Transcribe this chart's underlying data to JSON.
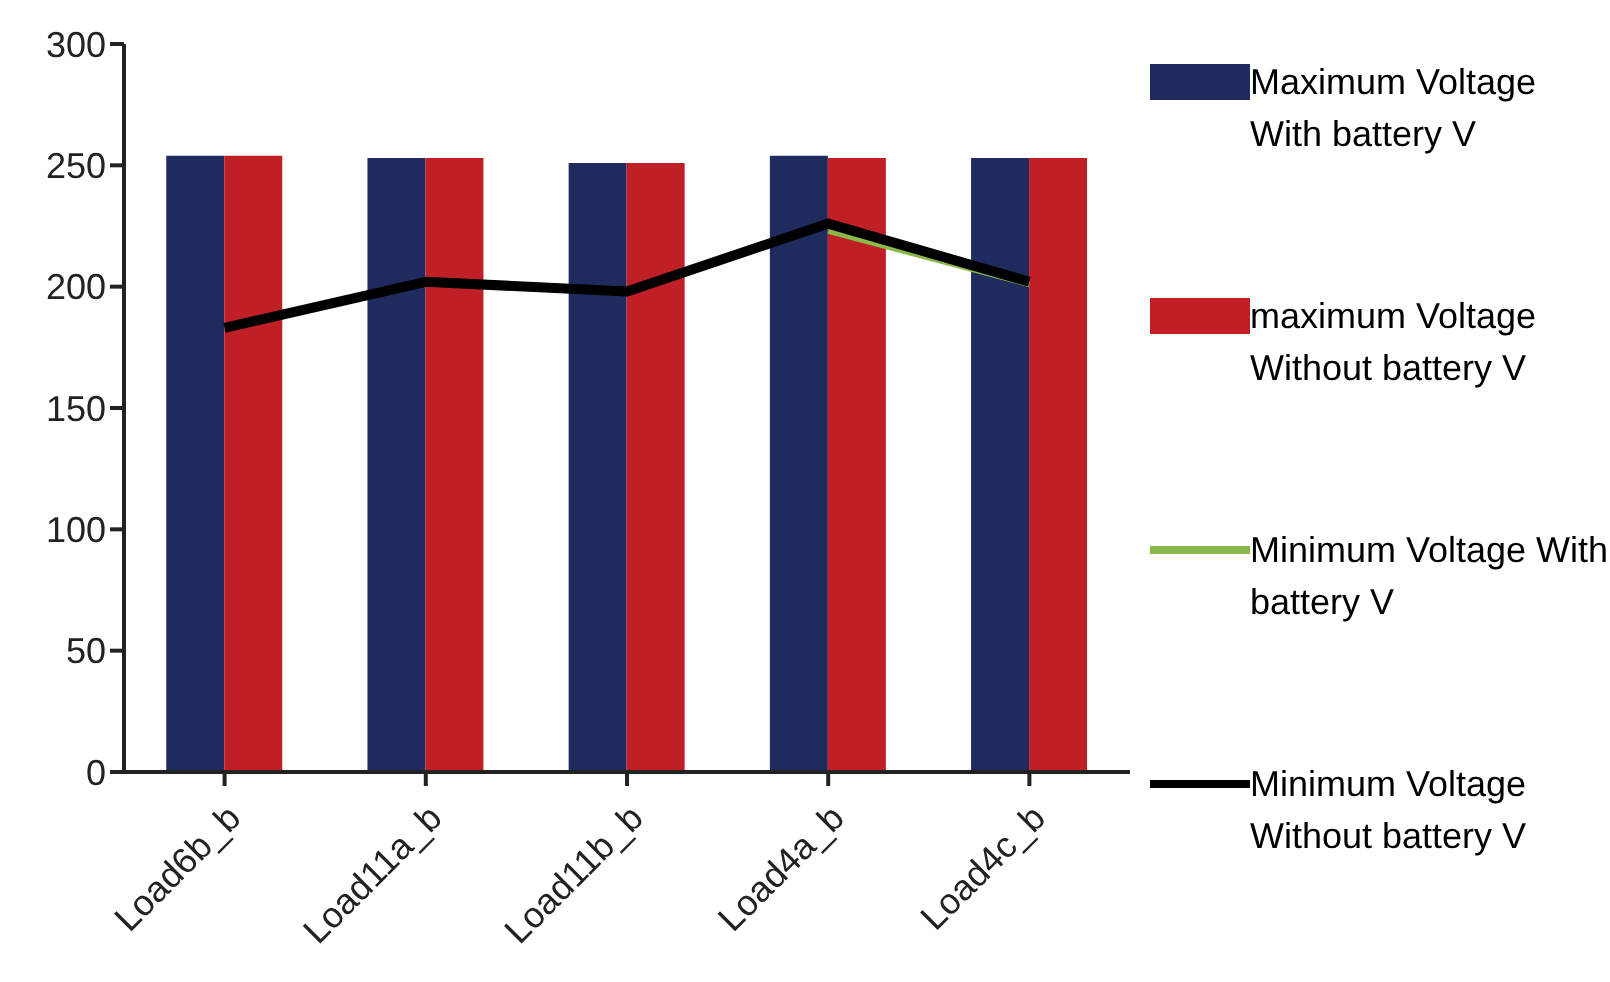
{
  "chart_data": {
    "type": "bar",
    "categories": [
      "Load6b_b",
      "Load11a_b",
      "Load11b_b",
      "Load4a_b",
      "Load4c_b"
    ],
    "series": [
      {
        "name": "Maximum Voltage With battery V",
        "color": "#1f2a5e",
        "values": [
          254,
          253,
          251,
          254,
          253
        ]
      },
      {
        "name": "maximum Voltage Without battery V",
        "color": "#c01f26",
        "values": [
          254,
          253,
          251,
          253,
          253
        ]
      },
      {
        "name": "Minimum Voltage With battery V",
        "type": "line",
        "color": "#8ab84a",
        "values": [
          null,
          null,
          null,
          223,
          201
        ]
      },
      {
        "name": "Minimum Voltage Without battery V",
        "type": "line",
        "color": "#000000",
        "values": [
          183,
          202,
          198,
          226,
          202
        ]
      }
    ],
    "ylim": [
      0,
      300
    ],
    "yticks": [
      0,
      50,
      100,
      150,
      200,
      250,
      300
    ],
    "grid": false,
    "legend": "right",
    "marker": "none"
  }
}
